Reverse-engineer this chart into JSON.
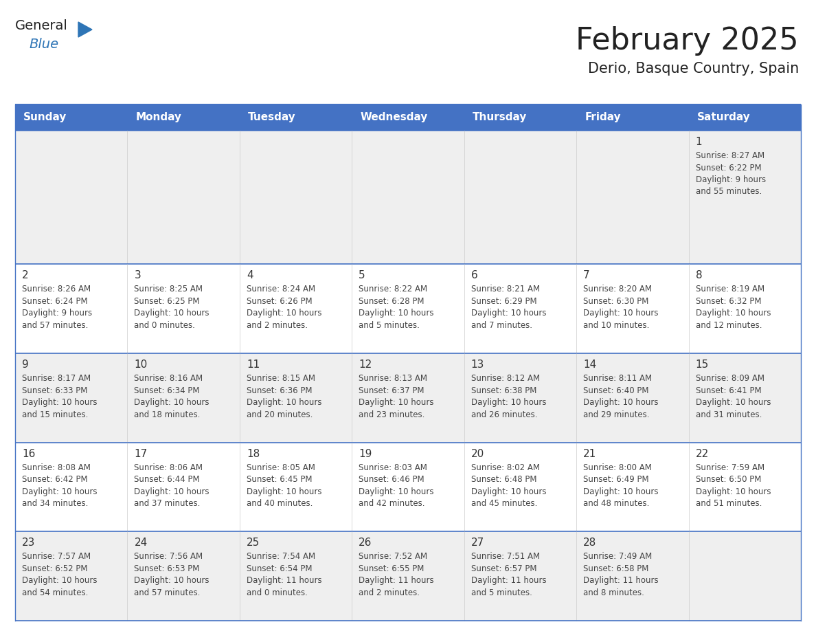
{
  "title": "February 2025",
  "subtitle": "Derio, Basque Country, Spain",
  "header_bg": "#4472C4",
  "header_text_color": "#FFFFFF",
  "row_bg_gray": "#EFEFEF",
  "row_bg_white": "#FFFFFF",
  "border_color": "#4472C4",
  "text_color": "#444444",
  "day_num_color": "#333333",
  "days_of_week": [
    "Sunday",
    "Monday",
    "Tuesday",
    "Wednesday",
    "Thursday",
    "Friday",
    "Saturday"
  ],
  "calendar": [
    [
      {
        "day": null,
        "info": null
      },
      {
        "day": null,
        "info": null
      },
      {
        "day": null,
        "info": null
      },
      {
        "day": null,
        "info": null
      },
      {
        "day": null,
        "info": null
      },
      {
        "day": null,
        "info": null
      },
      {
        "day": 1,
        "info": "Sunrise: 8:27 AM\nSunset: 6:22 PM\nDaylight: 9 hours\nand 55 minutes."
      }
    ],
    [
      {
        "day": 2,
        "info": "Sunrise: 8:26 AM\nSunset: 6:24 PM\nDaylight: 9 hours\nand 57 minutes."
      },
      {
        "day": 3,
        "info": "Sunrise: 8:25 AM\nSunset: 6:25 PM\nDaylight: 10 hours\nand 0 minutes."
      },
      {
        "day": 4,
        "info": "Sunrise: 8:24 AM\nSunset: 6:26 PM\nDaylight: 10 hours\nand 2 minutes."
      },
      {
        "day": 5,
        "info": "Sunrise: 8:22 AM\nSunset: 6:28 PM\nDaylight: 10 hours\nand 5 minutes."
      },
      {
        "day": 6,
        "info": "Sunrise: 8:21 AM\nSunset: 6:29 PM\nDaylight: 10 hours\nand 7 minutes."
      },
      {
        "day": 7,
        "info": "Sunrise: 8:20 AM\nSunset: 6:30 PM\nDaylight: 10 hours\nand 10 minutes."
      },
      {
        "day": 8,
        "info": "Sunrise: 8:19 AM\nSunset: 6:32 PM\nDaylight: 10 hours\nand 12 minutes."
      }
    ],
    [
      {
        "day": 9,
        "info": "Sunrise: 8:17 AM\nSunset: 6:33 PM\nDaylight: 10 hours\nand 15 minutes."
      },
      {
        "day": 10,
        "info": "Sunrise: 8:16 AM\nSunset: 6:34 PM\nDaylight: 10 hours\nand 18 minutes."
      },
      {
        "day": 11,
        "info": "Sunrise: 8:15 AM\nSunset: 6:36 PM\nDaylight: 10 hours\nand 20 minutes."
      },
      {
        "day": 12,
        "info": "Sunrise: 8:13 AM\nSunset: 6:37 PM\nDaylight: 10 hours\nand 23 minutes."
      },
      {
        "day": 13,
        "info": "Sunrise: 8:12 AM\nSunset: 6:38 PM\nDaylight: 10 hours\nand 26 minutes."
      },
      {
        "day": 14,
        "info": "Sunrise: 8:11 AM\nSunset: 6:40 PM\nDaylight: 10 hours\nand 29 minutes."
      },
      {
        "day": 15,
        "info": "Sunrise: 8:09 AM\nSunset: 6:41 PM\nDaylight: 10 hours\nand 31 minutes."
      }
    ],
    [
      {
        "day": 16,
        "info": "Sunrise: 8:08 AM\nSunset: 6:42 PM\nDaylight: 10 hours\nand 34 minutes."
      },
      {
        "day": 17,
        "info": "Sunrise: 8:06 AM\nSunset: 6:44 PM\nDaylight: 10 hours\nand 37 minutes."
      },
      {
        "day": 18,
        "info": "Sunrise: 8:05 AM\nSunset: 6:45 PM\nDaylight: 10 hours\nand 40 minutes."
      },
      {
        "day": 19,
        "info": "Sunrise: 8:03 AM\nSunset: 6:46 PM\nDaylight: 10 hours\nand 42 minutes."
      },
      {
        "day": 20,
        "info": "Sunrise: 8:02 AM\nSunset: 6:48 PM\nDaylight: 10 hours\nand 45 minutes."
      },
      {
        "day": 21,
        "info": "Sunrise: 8:00 AM\nSunset: 6:49 PM\nDaylight: 10 hours\nand 48 minutes."
      },
      {
        "day": 22,
        "info": "Sunrise: 7:59 AM\nSunset: 6:50 PM\nDaylight: 10 hours\nand 51 minutes."
      }
    ],
    [
      {
        "day": 23,
        "info": "Sunrise: 7:57 AM\nSunset: 6:52 PM\nDaylight: 10 hours\nand 54 minutes."
      },
      {
        "day": 24,
        "info": "Sunrise: 7:56 AM\nSunset: 6:53 PM\nDaylight: 10 hours\nand 57 minutes."
      },
      {
        "day": 25,
        "info": "Sunrise: 7:54 AM\nSunset: 6:54 PM\nDaylight: 11 hours\nand 0 minutes."
      },
      {
        "day": 26,
        "info": "Sunrise: 7:52 AM\nSunset: 6:55 PM\nDaylight: 11 hours\nand 2 minutes."
      },
      {
        "day": 27,
        "info": "Sunrise: 7:51 AM\nSunset: 6:57 PM\nDaylight: 11 hours\nand 5 minutes."
      },
      {
        "day": 28,
        "info": "Sunrise: 7:49 AM\nSunset: 6:58 PM\nDaylight: 11 hours\nand 8 minutes."
      },
      {
        "day": null,
        "info": null
      }
    ]
  ],
  "logo_general_color": "#222222",
  "logo_blue_color": "#2E75B6",
  "logo_triangle_color": "#2E75B6",
  "title_fontsize": 32,
  "subtitle_fontsize": 15,
  "header_fontsize": 11,
  "day_num_fontsize": 11,
  "info_fontsize": 8.5
}
